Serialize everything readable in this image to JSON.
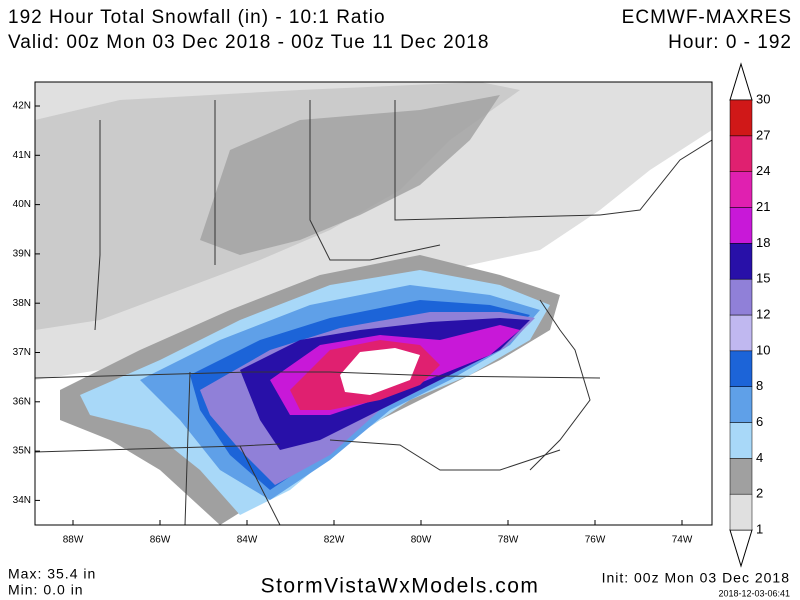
{
  "header": {
    "title": "192 Hour Total Snowfall (in) - 10:1 Ratio",
    "valid": "Valid: 00z Mon 03 Dec 2018 - 00z Tue 11 Dec 2018",
    "model": "ECMWF-MAXRES",
    "hours": "Hour: 0 - 192"
  },
  "map": {
    "lat_labels": [
      "42N",
      "41N",
      "40N",
      "39N",
      "38N",
      "37N",
      "36N",
      "35N",
      "34N"
    ],
    "lon_labels": [
      "88W",
      "86W",
      "84W",
      "82W",
      "80W",
      "78W",
      "76W",
      "74W"
    ]
  },
  "colorbar": {
    "levels": [
      "1",
      "2",
      "4",
      "6",
      "8",
      "10",
      "12",
      "15",
      "18",
      "21",
      "24",
      "27",
      "30"
    ],
    "colors": [
      "#e0e0e0",
      "#a0a0a0",
      "#a8d8f8",
      "#5fa0e8",
      "#1c64d8",
      "#c0b8f0",
      "#9080d8",
      "#2810a8",
      "#c818d8",
      "#e020b0",
      "#e02070",
      "#d01818"
    ]
  },
  "footer": {
    "max": "Max: 35.4 in",
    "min": "Min: 0.0 in",
    "site": "StormVistaWxModels.com",
    "init": "Init: 00z Mon 03 Dec 2018",
    "timestamp": "2018-12-03-06:41"
  }
}
